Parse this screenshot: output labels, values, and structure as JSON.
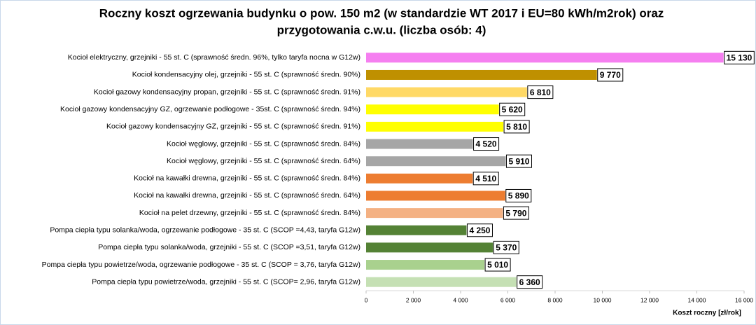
{
  "chart_data": {
    "type": "hbar",
    "title": [
      "Roczny koszt ogrzewania budynku  o pow. 150 m2 (w standardzie WT 2017 i EU=80 kWh/m2rok) oraz",
      "przygotowania c.w.u. (liczba osób: 4)"
    ],
    "x_label": "Koszt roczny [zł/rok]",
    "categories": [
      "Kocioł elektryczny, grzejniki - 55 st. C (sprawność średn. 96%, tylko taryfa nocna w G12w)",
      "Kocioł kondensacyjny olej, grzejniki - 55 st. C (sprawność średn. 90%)",
      "Kocioł gazowy kondensacyjny propan, grzejniki - 55 st. C (sprawność średn. 91%)",
      "Kocioł gazowy kondensacyjny GZ, ogrzewanie podłogowe - 35st. C (sprawność średn. 94%)",
      "Kocioł gazowy kondensacyjny GZ, grzejniki - 55 st. C (sprawność średn. 91%)",
      "Kocioł węglowy, grzejniki - 55 st. C (sprawność średn. 84%)",
      "Kocioł węglowy, grzejniki - 55 st. C (sprawność średn. 64%)",
      "Kocioł na kawałki drewna, grzejniki - 55 st. C (sprawność średn. 84%)",
      "Kocioł na kawałki drewna, grzejniki - 55 st. C (sprawność średn. 64%)",
      "Kocioł na pelet drzewny, grzejniki - 55 st. C (sprawność średn. 84%)",
      "Pompa ciepła typu solanka/woda, ogrzewanie podłogowe - 35 st. C (SCOP =4,43, taryfa G12w)",
      "Pompa ciepła typu solanka/woda, grzejniki - 55 st. C (SCOP =3,51, taryfa G12w)",
      "Pompa ciepła typu powietrze/woda, ogrzewanie podłogowe - 35 st. C (SCOP = 3,76, taryfa G12w)",
      "Pompa ciepła typu powietrze/woda, grzejniki - 55 st. C (SCOP= 2,96, taryfa G12w)"
    ],
    "values": [
      15130,
      9770,
      6810,
      5620,
      5810,
      4520,
      5910,
      4510,
      5890,
      5790,
      4250,
      5370,
      5010,
      6360
    ],
    "value_labels": [
      "15 130",
      "9 770",
      "6 810",
      "5 620",
      "5 810",
      "4 520",
      "5 910",
      "4 510",
      "5 890",
      "5 790",
      "4 250",
      "5 370",
      "5 010",
      "6 360"
    ],
    "colors": [
      "#f57ff0",
      "#bf9000",
      "#ffd966",
      "#ffff00",
      "#ffff00",
      "#a6a6a6",
      "#a6a6a6",
      "#ed7d31",
      "#ed7d31",
      "#f4b183",
      "#548235",
      "#548235",
      "#a9d18e",
      "#c5e0b4"
    ],
    "xlim": [
      0,
      16000
    ],
    "xticks": [
      0,
      {
        "value": 2000,
        "label": "2 000"
      },
      {
        "value": 4000,
        "label": "4 000"
      },
      {
        "value": 6000,
        "label": "6 000"
      },
      {
        "value": 8000,
        "label": "8 000"
      },
      {
        "value": 10000,
        "label": "10 000"
      },
      {
        "value": 12000,
        "label": "12 000"
      },
      {
        "value": 14000,
        "label": "14 000"
      },
      {
        "value": 16000,
        "label": "16 000"
      }
    ],
    "grid": false
  }
}
